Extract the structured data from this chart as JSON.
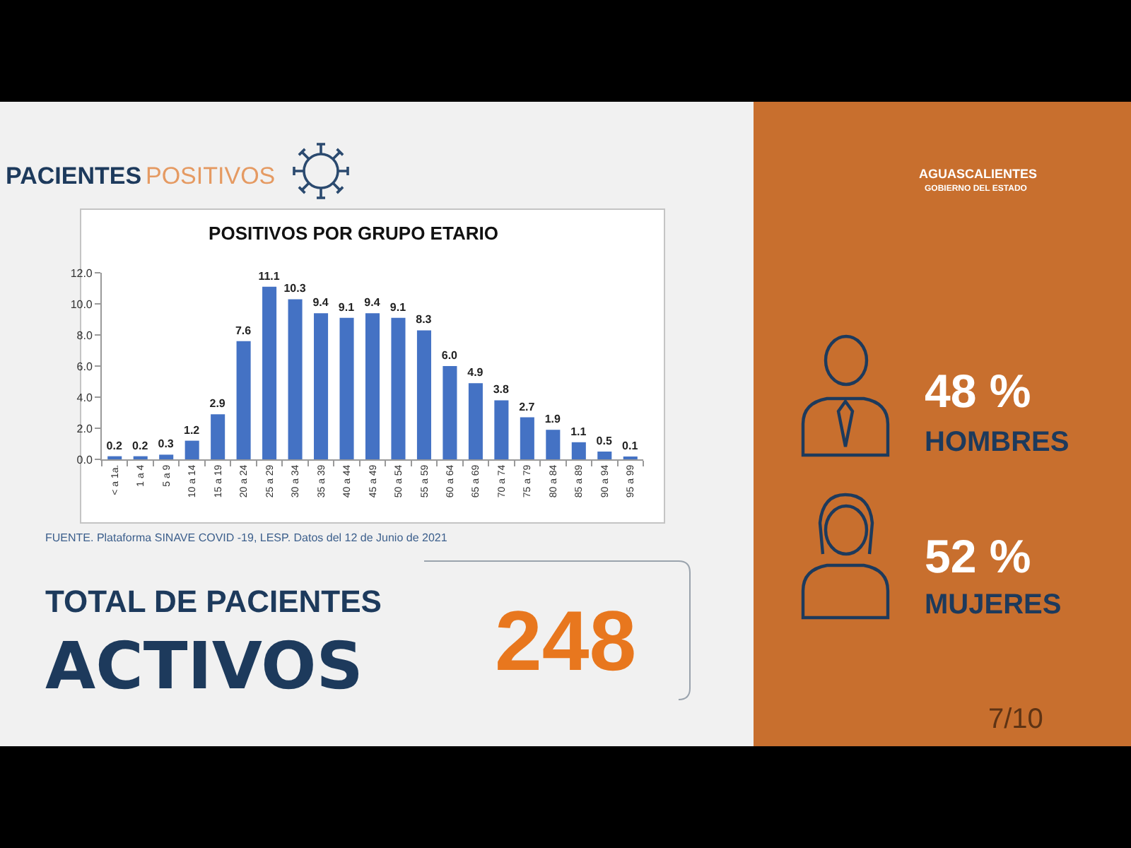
{
  "chart_data": [
    {
      "type": "bar",
      "title": "POSITIVOS POR GRUPO ETARIO",
      "categories": [
        "< a 1a.",
        "1 a 4",
        "5 a 9",
        "10 a 14",
        "15 a 19",
        "20 a 24",
        "25 a 29",
        "30 a 34",
        "35 a 39",
        "40 a 44",
        "45 a 49",
        "50 a 54",
        "55 a 59",
        "60 a 64",
        "65 a 69",
        "70 a 74",
        "75 a 79",
        "80 a 84",
        "85 a 89",
        "90 a 94",
        "95 a 99"
      ],
      "values": [
        0.2,
        0.2,
        0.3,
        1.2,
        2.9,
        7.6,
        11.1,
        10.3,
        9.4,
        9.1,
        9.4,
        9.1,
        8.3,
        6.0,
        4.9,
        3.8,
        2.7,
        1.9,
        1.1,
        0.5,
        0.1
      ],
      "value_labels": [
        "0.2",
        "0.2",
        "0.3",
        "1.2",
        "2.9",
        "7.6",
        "11.1",
        "10.3",
        "9.4",
        "9.1",
        "9.4",
        "9.1",
        "8.3",
        "6.0",
        "4.9",
        "3.8",
        "2.7",
        "1.9",
        "1.1",
        "0.5",
        "0.1"
      ],
      "color": "#4472c4",
      "ylim": [
        0,
        12
      ],
      "yticks": [
        {
          "value": 0,
          "label": "0.0"
        },
        {
          "value": 2,
          "label": "2.0"
        },
        {
          "value": 4,
          "label": "4.0"
        },
        {
          "value": 6,
          "label": "6.0"
        },
        {
          "value": 8,
          "label": "8.0"
        },
        {
          "value": 10,
          "label": "10.0"
        },
        {
          "value": 12,
          "label": "12.0"
        }
      ],
      "annotations": [
        "FUENTE. Plataforma SINAVE COVID -19, LESP. Datos del 12 de Junio de 2021"
      ]
    },
    {
      "type": "other",
      "annotations": [
        "PACIENTES",
        "POSITIVOS",
        "TOTAL DE PACIENTES",
        "ACTIVOS",
        "248",
        "AGUASCALIENTES",
        "GOBIERNO DEL ESTADO",
        "48 %",
        "HOMBRES",
        "52 %",
        "MUJERES",
        "7/10"
      ]
    }
  ]
}
